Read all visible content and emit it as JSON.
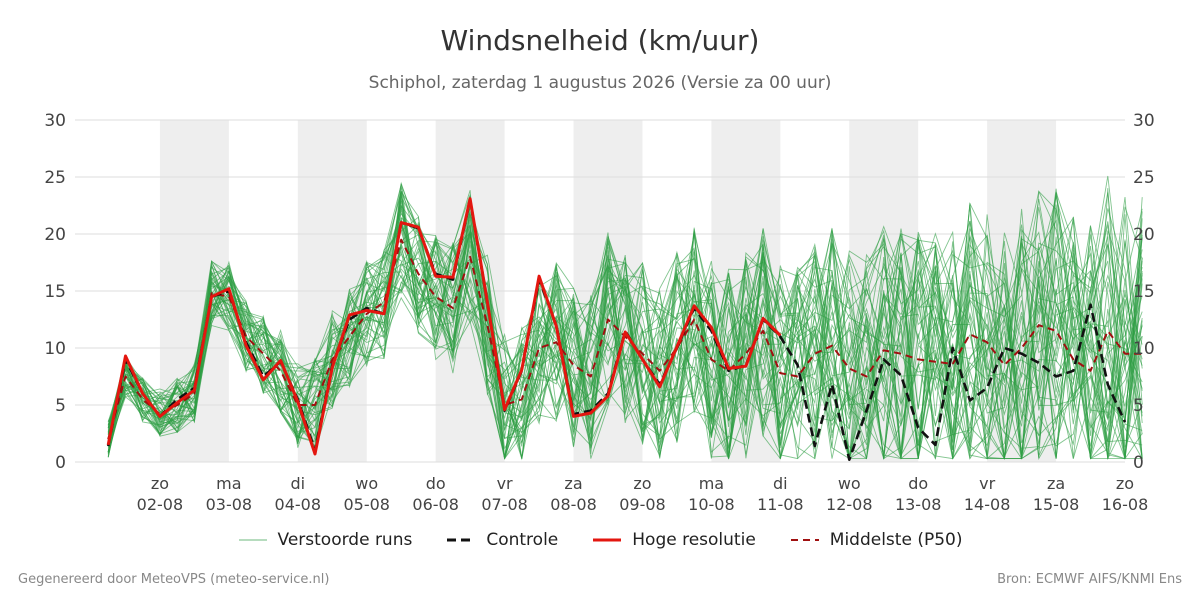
{
  "title": "Windsnelheid (km/uur)",
  "subtitle": "Schiphol, zaterdag  1 augustus 2026 (Versie za 00 uur)",
  "legend": {
    "ensemble_label": "Verstoorde runs",
    "control_label": "Controle",
    "hires_label": "Hoge resolutie",
    "median_label": "Middelste (P50)"
  },
  "footer": {
    "left": "Gegenereerd door MeteoVPS (meteo-service.nl)",
    "right": "Bron: ECMWF AIFS/KNMI Ens"
  },
  "colors": {
    "ensemble": "#2e9e45",
    "control": "#111111",
    "hires": "#e3160f",
    "median": "#a01010",
    "band": "#eeeeee",
    "grid": "#dddddd"
  },
  "chart_data": {
    "type": "line",
    "title": "Windsnelheid (km/uur)",
    "ylim": [
      0,
      30
    ],
    "yticks": [
      0,
      5,
      10,
      15,
      20,
      25,
      30
    ],
    "xlim": [
      0,
      15
    ],
    "xticks": [
      {
        "day": "zo",
        "date": "02-08"
      },
      {
        "day": "ma",
        "date": "03-08"
      },
      {
        "day": "di",
        "date": "04-08"
      },
      {
        "day": "wo",
        "date": "05-08"
      },
      {
        "day": "do",
        "date": "06-08"
      },
      {
        "day": "vr",
        "date": "07-08"
      },
      {
        "day": "za",
        "date": "08-08"
      },
      {
        "day": "zo",
        "date": "09-08"
      },
      {
        "day": "ma",
        "date": "10-08"
      },
      {
        "day": "di",
        "date": "11-08"
      },
      {
        "day": "wo",
        "date": "12-08"
      },
      {
        "day": "do",
        "date": "13-08"
      },
      {
        "day": "vr",
        "date": "14-08"
      },
      {
        "day": "za",
        "date": "15-08"
      },
      {
        "day": "zo",
        "date": "16-08"
      }
    ],
    "shaded_days": [
      1,
      3,
      5,
      7,
      9,
      11,
      13
    ],
    "x_step_days": 0.25,
    "x_start_day": 0.25,
    "hires": {
      "name": "Hoge resolutie",
      "values": [
        1.5,
        9.3,
        6.0,
        4.0,
        5.2,
        6.3,
        14.5,
        15.2,
        10.2,
        7.2,
        8.9,
        5.3,
        0.7,
        8.3,
        12.9,
        13.3,
        13.0,
        21.0,
        20.6,
        16.3,
        16.2,
        23.1,
        14.0,
        4.6,
        8.1,
        16.3,
        11.9,
        4.0,
        4.3,
        5.8,
        11.4,
        9.0,
        6.6,
        10.1,
        13.7,
        11.8,
        8.2,
        8.4,
        12.6,
        11.1
      ]
    },
    "control": {
      "name": "Controle",
      "values": [
        1.4,
        9.0,
        6.0,
        4.0,
        5.5,
        6.5,
        14.5,
        15.0,
        10.5,
        7.5,
        8.8,
        5.5,
        1.0,
        8.5,
        12.5,
        13.5,
        13.0,
        21.0,
        20.5,
        16.5,
        16.0,
        23.0,
        14.0,
        4.5,
        8.0,
        16.0,
        12.0,
        4.2,
        4.5,
        6.0,
        11.5,
        9.0,
        6.8,
        10.0,
        13.5,
        11.5,
        8.0,
        8.5,
        12.5,
        11.0,
        8.5,
        1.4,
        6.8,
        0.2,
        4.5,
        9.0,
        7.6,
        3.0,
        1.5,
        10.0,
        5.4,
        6.5,
        10.0,
        9.5,
        8.7,
        7.5,
        8.0,
        13.8,
        6.8,
        3.5
      ]
    },
    "median": {
      "name": "Middelste (P50)",
      "values": [
        2.0,
        7.5,
        5.5,
        4.2,
        5.0,
        6.0,
        14.8,
        14.5,
        11.0,
        9.5,
        8.0,
        5.0,
        5.0,
        9.0,
        11.0,
        13.0,
        14.0,
        19.5,
        16.5,
        14.5,
        13.5,
        18.0,
        12.0,
        5.0,
        5.5,
        10.0,
        10.5,
        8.5,
        7.5,
        12.5,
        11.0,
        9.5,
        8.0,
        10.0,
        12.5,
        9.0,
        8.0,
        9.5,
        11.5,
        7.8,
        7.5,
        9.5,
        10.2,
        8.2,
        7.5,
        9.8,
        9.5,
        9.0,
        8.8,
        8.6,
        11.2,
        10.5,
        8.5,
        10.0,
        12.0,
        11.5,
        9.0,
        8.0,
        11.5,
        9.5,
        9.5
      ]
    },
    "ensemble_count": 50
  }
}
